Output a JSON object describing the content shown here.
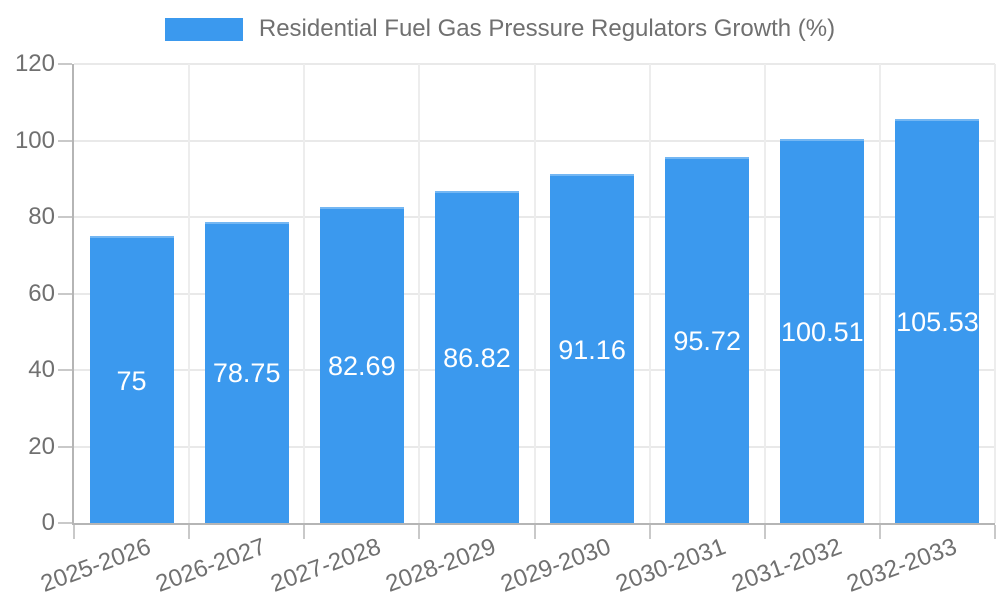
{
  "chart_data": {
    "type": "bar",
    "title": "Residential Fuel Gas Pressure Regulators Growth (%)",
    "legend": {
      "position": "top",
      "label": "Residential Fuel Gas Pressure Regulators Growth (%)"
    },
    "categories": [
      "2025-2026",
      "2026-2027",
      "2027-2028",
      "2028-2029",
      "2029-2030",
      "2030-2031",
      "2031-2032",
      "2032-2033"
    ],
    "values": [
      75,
      78.75,
      82.69,
      86.82,
      91.16,
      95.72,
      100.51,
      105.53
    ],
    "value_labels": [
      "75",
      "78.75",
      "82.69",
      "86.82",
      "91.16",
      "95.72",
      "100.51",
      "105.53"
    ],
    "xlabel": "",
    "ylabel": "",
    "ylim": [
      0,
      120
    ],
    "yticks": [
      0,
      20,
      40,
      60,
      80,
      100,
      120
    ],
    "grid": true,
    "colors": {
      "bar_fill": "#3b99ee",
      "bar_border": "#74b7f3",
      "value_label_text": "#ffffff",
      "axis_text": "#707070",
      "gridline": "#e9e9e9",
      "axis_border": "#b5b5b5"
    }
  }
}
